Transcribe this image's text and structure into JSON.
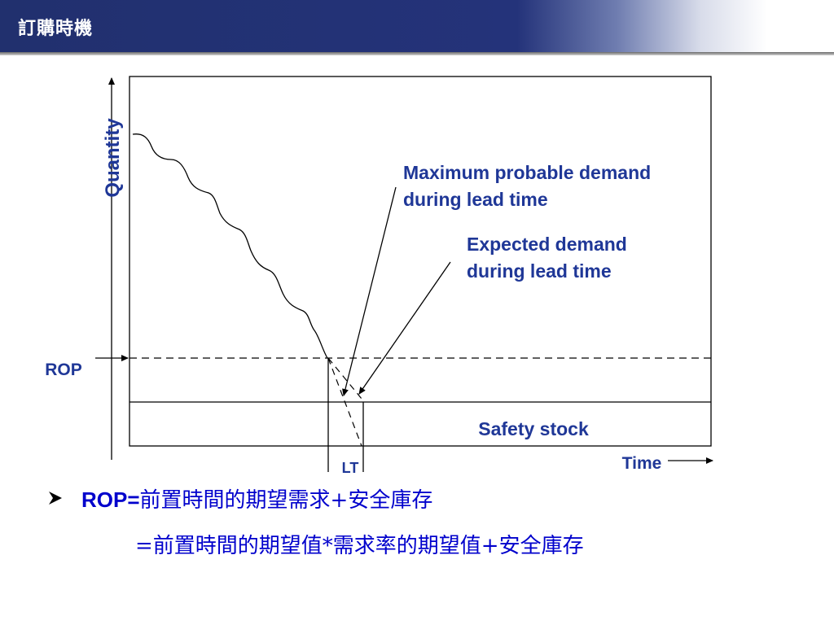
{
  "slide": {
    "title": "訂購時機"
  },
  "diagram": {
    "y_axis_label": "Quantity",
    "x_axis_label": "Time",
    "rop_label": "ROP",
    "lt_label": "LT",
    "safety_stock_label": "Safety stock",
    "annotations": {
      "max_demand_line1": "Maximum probable demand",
      "max_demand_line2": "during lead time",
      "expected_demand_line1": "Expected demand",
      "expected_demand_line2": "during lead time"
    }
  },
  "formula": {
    "line1_prefix": "ROP=",
    "line1_rest": "前置時間的期望需求+安全庫存",
    "line2": "=前置時間的期望值*需求率的期望值+安全庫存"
  },
  "colors": {
    "title_bar": "#24337a",
    "label_blue": "#1f3797",
    "formula_blue": "#0000cc",
    "line": "#000000"
  }
}
